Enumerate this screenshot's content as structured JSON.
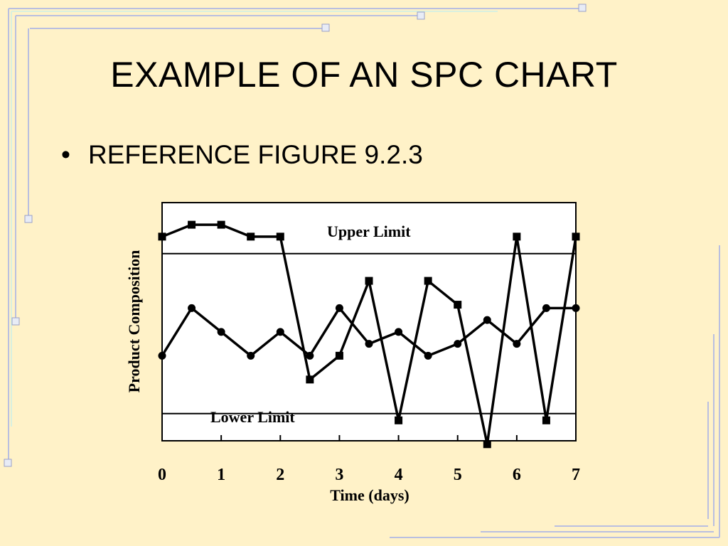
{
  "slide": {
    "title": "EXAMPLE OF AN SPC CHART",
    "bullet": "REFERENCE FIGURE 9.2.3"
  },
  "colors": {
    "background": "#fff2c8",
    "frame_line": "#b9bfe0",
    "frame_accent": "#d8f0e0",
    "plot_background": "#ffffff",
    "ink": "#000000"
  },
  "chart_data": {
    "type": "line",
    "xlabel": "Time (days)",
    "ylabel": "Product Composition",
    "x_ticks": [
      0,
      1,
      2,
      3,
      4,
      5,
      6,
      7
    ],
    "xlim": [
      0,
      7
    ],
    "ylim": [
      -2.5,
      4.5
    ],
    "limits": [
      {
        "label": "Upper Limit",
        "value": 3.0
      },
      {
        "label": "Lower Limit",
        "value": -1.7
      }
    ],
    "series": [
      {
        "marker": "square",
        "x": [
          0,
          0.5,
          1,
          1.5,
          2,
          2.5,
          3,
          3.5,
          4,
          4.5,
          5,
          5.5,
          6,
          6.5,
          7
        ],
        "y": [
          3.5,
          3.85,
          3.85,
          3.5,
          3.5,
          -0.7,
          0.0,
          2.2,
          -1.9,
          2.2,
          1.5,
          -2.6,
          3.5,
          -1.9,
          3.5
        ]
      },
      {
        "marker": "circle",
        "x": [
          0,
          0.5,
          1,
          1.5,
          2,
          2.5,
          3,
          3.5,
          4,
          4.5,
          5,
          5.5,
          6,
          6.5,
          7
        ],
        "y": [
          0.0,
          1.4,
          0.7,
          0.0,
          0.7,
          0.0,
          1.4,
          0.35,
          0.7,
          0.0,
          0.35,
          1.05,
          0.35,
          1.4,
          1.4
        ]
      }
    ]
  }
}
